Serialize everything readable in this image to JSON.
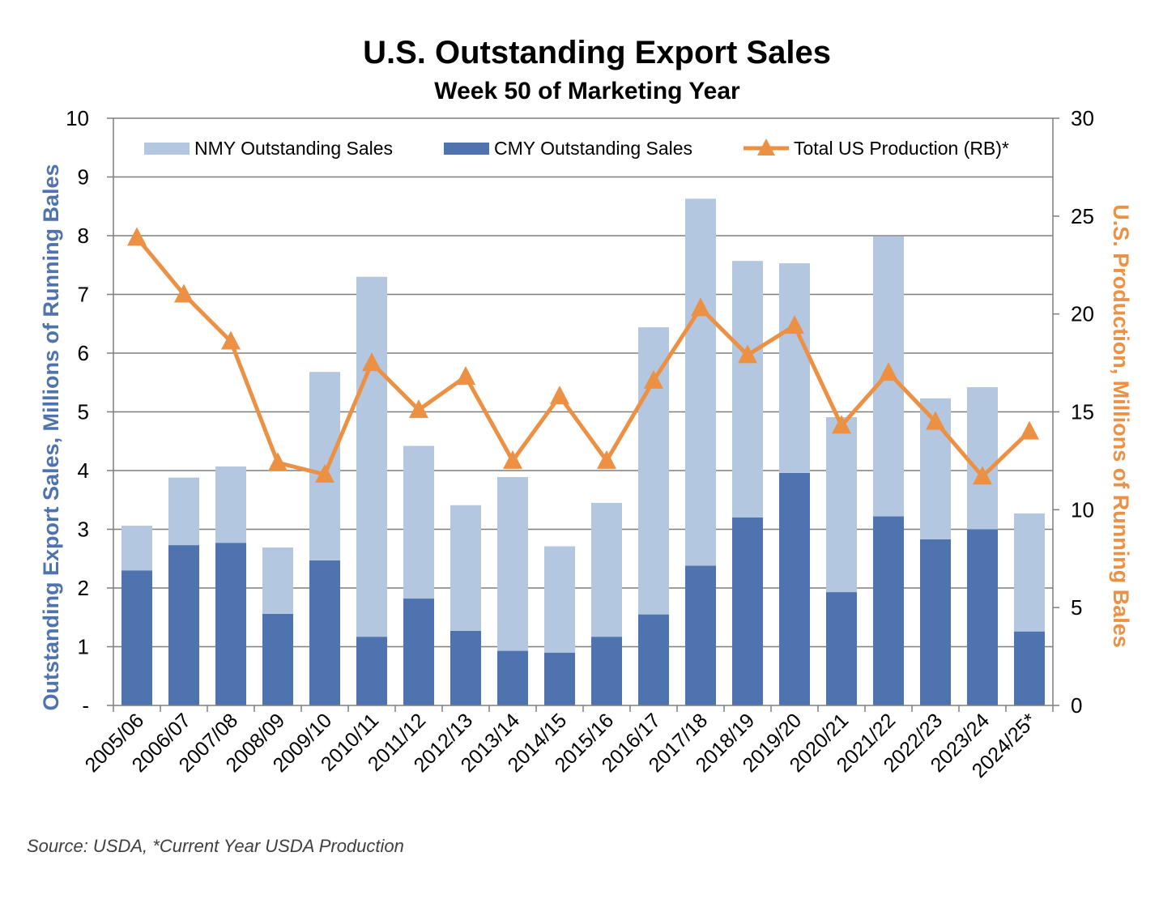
{
  "chart_data": {
    "type": "bar",
    "title": "U.S. Outstanding Export Sales",
    "subtitle": "Week 50 of Marketing Year",
    "categories": [
      "2005/06",
      "2006/07",
      "2007/08",
      "2008/09",
      "2009/10",
      "2010/11",
      "2011/12",
      "2012/13",
      "2013/14",
      "2014/15",
      "2015/16",
      "2016/17",
      "2017/18",
      "2018/19",
      "2019/20",
      "2020/21",
      "2021/22",
      "2022/23",
      "2023/24",
      "2024/25*"
    ],
    "stacked": true,
    "series": [
      {
        "name": "CMY Outstanding Sales",
        "type": "bar",
        "axis": "left",
        "color": "#4f73ae",
        "values": [
          2.3,
          2.73,
          2.77,
          1.56,
          2.47,
          1.17,
          1.82,
          1.27,
          0.93,
          0.9,
          1.17,
          1.55,
          2.38,
          3.2,
          3.96,
          1.93,
          3.22,
          2.83,
          3.0,
          1.26
        ]
      },
      {
        "name": "NMY Outstanding Sales",
        "type": "bar",
        "axis": "left",
        "color": "#b4c7e1",
        "values": [
          0.76,
          1.15,
          1.3,
          1.13,
          3.21,
          6.13,
          2.6,
          2.14,
          2.96,
          1.81,
          2.28,
          4.89,
          6.25,
          4.37,
          3.57,
          2.98,
          4.77,
          2.4,
          2.42,
          2.01
        ]
      },
      {
        "name": "Total US Production (RB)*",
        "type": "line",
        "axis": "right",
        "color": "#ec9144",
        "marker": "triangle",
        "values": [
          23.9,
          21.0,
          18.6,
          12.4,
          11.8,
          17.5,
          15.1,
          16.8,
          12.5,
          15.8,
          12.5,
          16.6,
          20.3,
          17.9,
          19.4,
          14.3,
          17.0,
          14.5,
          11.7,
          14.0
        ]
      }
    ],
    "ylabel": "Outstanding Export Sales, Millions of Running Bales",
    "ylabel_color": "#4f73ae",
    "ylim": [
      0,
      10
    ],
    "yticks": [
      "-",
      "1",
      "2",
      "3",
      "4",
      "5",
      "6",
      "7",
      "8",
      "9",
      "10"
    ],
    "y2label": "U.S. Production, Millions of Running Bales",
    "y2label_color": "#ec9144",
    "y2lim": [
      0,
      30
    ],
    "y2ticks": [
      "0",
      "5",
      "10",
      "15",
      "20",
      "25",
      "30"
    ],
    "grid": true,
    "legend_position": "top"
  },
  "source": "Source: USDA, *Current Year USDA Production"
}
